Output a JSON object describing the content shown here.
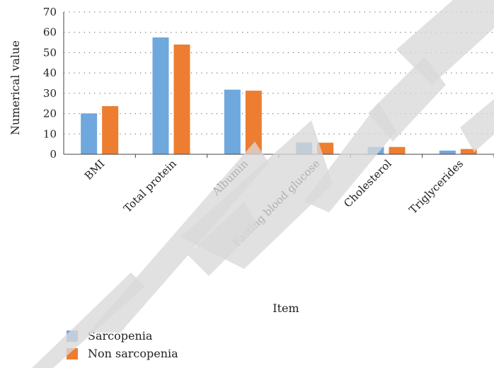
{
  "chart_data": {
    "type": "bar",
    "title": "",
    "xlabel": "Item",
    "ylabel": "Numerical value",
    "categories": [
      "BMI",
      "Total protein",
      "Albumin",
      "Fasting blood glucose",
      "Cholesterol",
      "Triglycerides"
    ],
    "series": [
      {
        "name": "Sarcopenia",
        "color": "#6fa8dc",
        "values": [
          20.1,
          57.5,
          31.8,
          5.8,
          3.6,
          1.8
        ]
      },
      {
        "name": "Non sarcopenia",
        "color": "#ed7d31",
        "values": [
          23.7,
          54.0,
          31.3,
          5.7,
          3.6,
          2.6
        ]
      }
    ],
    "ylim": [
      0,
      70
    ],
    "yticks": [
      0,
      10,
      20,
      30,
      40,
      50,
      60,
      70
    ],
    "grid": true,
    "grid_style": "dotted",
    "legend": "bottom-left",
    "watermark": "RETRACTED",
    "watermark_color": "#d9d9d9"
  }
}
